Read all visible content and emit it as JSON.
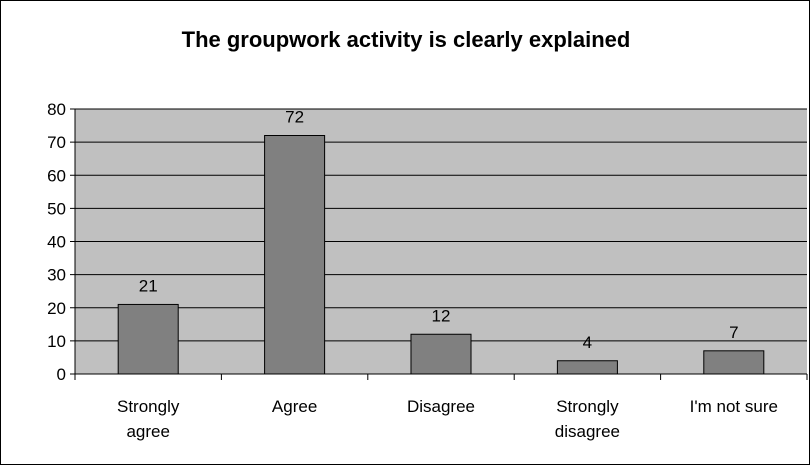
{
  "chart_data": {
    "type": "bar",
    "title": "The groupwork activity is clearly explained",
    "xlabel": "",
    "ylabel": "",
    "categories": [
      [
        "Strongly",
        "agree"
      ],
      [
        "Agree"
      ],
      [
        "Disagree"
      ],
      [
        "Strongly",
        "disagree"
      ],
      [
        "I'm not sure"
      ]
    ],
    "values": [
      21,
      72,
      12,
      4,
      7
    ],
    "ylim": [
      0,
      80
    ],
    "yticks": [
      "0",
      "10",
      "20",
      "30",
      "40",
      "50",
      "60",
      "70",
      "80"
    ],
    "grid": true,
    "legend": "none",
    "colors": {
      "plot_background": "#c0c0c0",
      "bar_fill": "#808080",
      "bar_stroke": "#000000",
      "gridline": "#000000"
    }
  }
}
